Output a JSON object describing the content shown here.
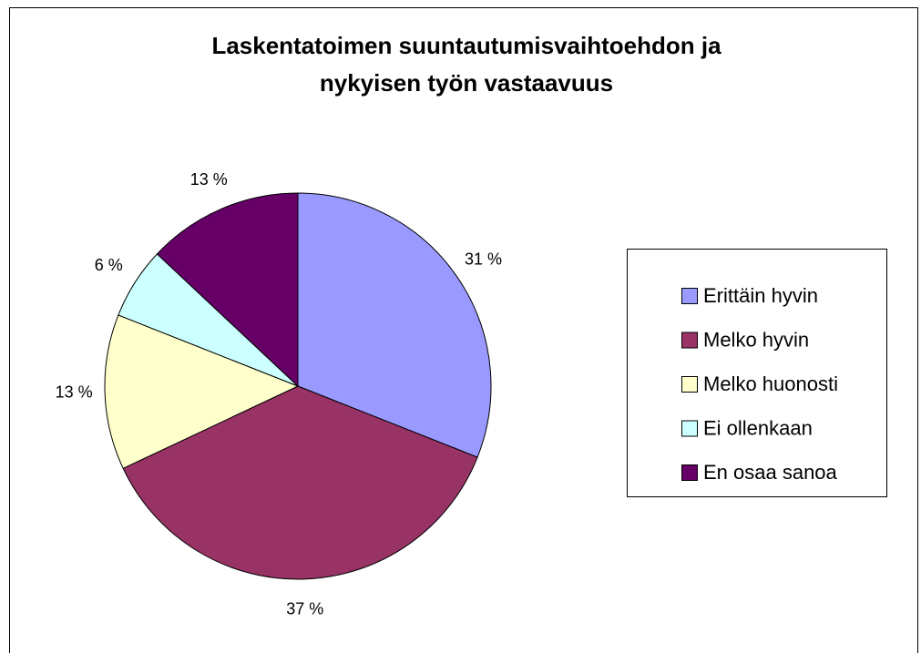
{
  "chart_data": {
    "type": "pie",
    "title": [
      "Laskentatoimen suuntautumisvaihtoehdon ja",
      "nykyisen työn vastaavuus"
    ],
    "categories": [
      "Erittäin hyvin",
      "Melko hyvin",
      "Melko huonosti",
      "Ei ollenkaan",
      "En osaa sanoa"
    ],
    "values": [
      31,
      37,
      13,
      6,
      13
    ],
    "value_labels": [
      "31 %",
      "37 %",
      "13 %",
      "6 %",
      "13 %"
    ],
    "colors": [
      "#9999ff",
      "#993366",
      "#ffffcc",
      "#ccffff",
      "#660066"
    ],
    "legend": "right"
  }
}
